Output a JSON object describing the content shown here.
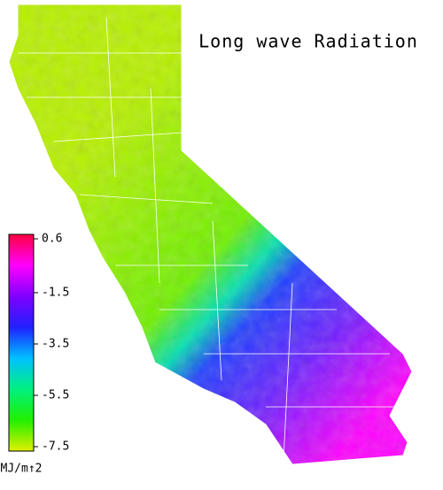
{
  "title": "Long wave Radiation",
  "colorbar": {
    "ticks": [
      0.6,
      -1.5,
      -3.5,
      -5.5,
      -7.5
    ],
    "unit": "MJ/m↑2",
    "colormap": [
      "#ff0040",
      "#ff00ff",
      "#8000ff",
      "#2020ff",
      "#00c0ff",
      "#00f080",
      "#20f000",
      "#e0f000"
    ]
  }
}
